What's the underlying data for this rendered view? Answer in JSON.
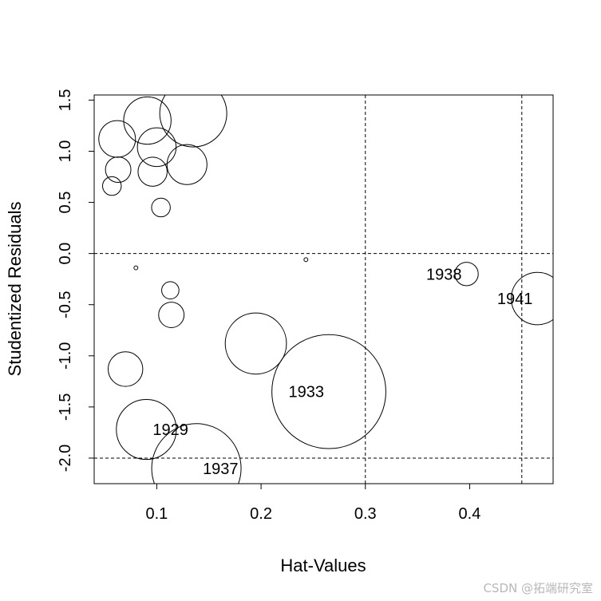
{
  "watermark": "CSDN @拓端研究室",
  "chart_data": {
    "type": "scatter",
    "title": "",
    "xlabel": "Hat-Values",
    "ylabel": "Studentized Residuals",
    "xlim": [
      0.04,
      0.48
    ],
    "ylim": [
      -2.25,
      1.55
    ],
    "xticks": [
      {
        "value": 0.1,
        "label": "0.1"
      },
      {
        "value": 0.2,
        "label": "0.2"
      },
      {
        "value": 0.3,
        "label": "0.3"
      },
      {
        "value": 0.4,
        "label": "0.4"
      }
    ],
    "yticks": [
      {
        "value": -2.0,
        "label": "-2.0"
      },
      {
        "value": -1.5,
        "label": "-1.5"
      },
      {
        "value": -1.0,
        "label": "-1.0"
      },
      {
        "value": -0.5,
        "label": "-0.5"
      },
      {
        "value": 0.0,
        "label": "0.0"
      },
      {
        "value": 0.5,
        "label": "0.5"
      },
      {
        "value": 1.0,
        "label": "1.0"
      },
      {
        "value": 1.5,
        "label": "1.5"
      }
    ],
    "reference_lines": {
      "horizontal": [
        -2.0,
        0.0
      ],
      "vertical": [
        0.3,
        0.45
      ]
    },
    "grid": false,
    "legend": "none",
    "point_style": "open circles, area proportional to Cook's distance",
    "points": [
      {
        "x": 0.091,
        "y": 1.3,
        "size": 0.045,
        "label": ""
      },
      {
        "x": 0.135,
        "y": 1.37,
        "size": 0.09,
        "label": ""
      },
      {
        "x": 0.062,
        "y": 1.12,
        "size": 0.027,
        "label": ""
      },
      {
        "x": 0.1,
        "y": 1.04,
        "size": 0.03,
        "label": ""
      },
      {
        "x": 0.063,
        "y": 0.82,
        "size": 0.013,
        "label": ""
      },
      {
        "x": 0.096,
        "y": 0.8,
        "size": 0.017,
        "label": ""
      },
      {
        "x": 0.129,
        "y": 0.87,
        "size": 0.032,
        "label": ""
      },
      {
        "x": 0.057,
        "y": 0.66,
        "size": 0.007,
        "label": ""
      },
      {
        "x": 0.104,
        "y": 0.45,
        "size": 0.007,
        "label": ""
      },
      {
        "x": 0.08,
        "y": -0.14,
        "size": 0.0003,
        "label": ""
      },
      {
        "x": 0.243,
        "y": -0.06,
        "size": 0.0003,
        "label": ""
      },
      {
        "x": 0.397,
        "y": -0.2,
        "size": 0.011,
        "label": "1938"
      },
      {
        "x": 0.465,
        "y": -0.44,
        "size": 0.055,
        "label": "1941"
      },
      {
        "x": 0.113,
        "y": -0.36,
        "size": 0.006,
        "label": ""
      },
      {
        "x": 0.114,
        "y": -0.6,
        "size": 0.013,
        "label": ""
      },
      {
        "x": 0.195,
        "y": -0.88,
        "size": 0.075,
        "label": ""
      },
      {
        "x": 0.07,
        "y": -1.13,
        "size": 0.024,
        "label": ""
      },
      {
        "x": 0.265,
        "y": -1.35,
        "size": 0.26,
        "label": "1933"
      },
      {
        "x": 0.09,
        "y": -1.72,
        "size": 0.072,
        "label": "1929"
      },
      {
        "x": 0.138,
        "y": -2.1,
        "size": 0.16,
        "label": "1937"
      }
    ]
  }
}
